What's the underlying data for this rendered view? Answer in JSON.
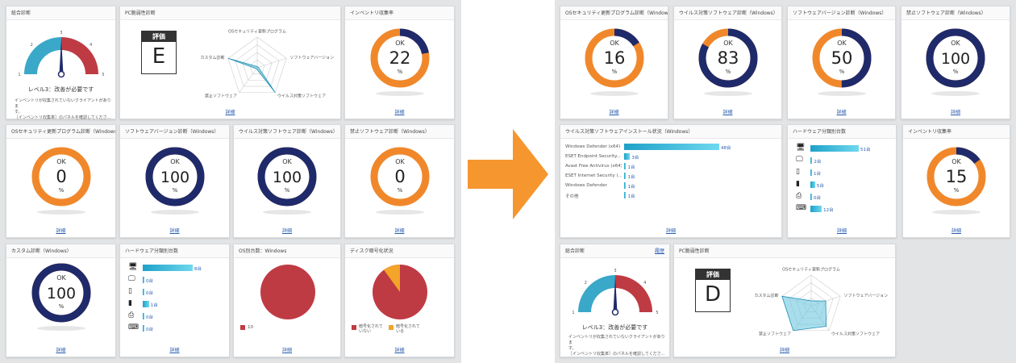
{
  "detail_label": "詳細",
  "left": {
    "overall": {
      "title": "総合診断",
      "gauge_ticks": [
        "1",
        "2",
        "3",
        "4",
        "5"
      ],
      "gauge_level": 3,
      "level_text": "レベル3：改善が必要です",
      "desc_line1": "インベントリが収集されていないクライアントがありま",
      "desc_line2": "す。",
      "desc_line3": "［インベントリ収集率］のパネルを確認してくださ..."
    },
    "pc_vuln": {
      "title": "PC脆弱性診断",
      "grade_label": "評価",
      "grade": "E",
      "radar_labels": [
        "OSセキュリティ更新プログラム",
        "ソフトウェアバージョン",
        "ウイルス対策ソフトウェア",
        "禁止ソフトウェア",
        "カスタム診断"
      ],
      "radar_values": [
        0,
        0,
        100,
        0,
        100
      ]
    },
    "inventory": {
      "title": "インベントリ収集率",
      "ok": "OK",
      "value": 22,
      "unit": "%"
    },
    "os_sec": {
      "title": "OSセキュリティ更新プログラム診断（Windows）",
      "ok": "OK",
      "value": 0,
      "unit": "%"
    },
    "sw_ver": {
      "title": "ソフトウェアバージョン診断（Windows）",
      "ok": "OK",
      "value": 100,
      "unit": "%"
    },
    "antivirus": {
      "title": "ウイルス対策ソフトウェア診断（Windows）",
      "ok": "OK",
      "value": 100,
      "unit": "%"
    },
    "forbidden": {
      "title": "禁止ソフトウェア診断（Windows）",
      "ok": "OK",
      "value": 0,
      "unit": "%"
    },
    "custom": {
      "title": "カスタム診断（Windows）",
      "ok": "OK",
      "value": 100,
      "unit": "%"
    },
    "hw_count": {
      "title": "ハードウェア分類別台数",
      "items": [
        {
          "icon": "desktop-icon",
          "value": 8,
          "label": "8台"
        },
        {
          "icon": "monitor-icon",
          "value": 0,
          "label": "0台"
        },
        {
          "icon": "tablet-icon",
          "value": 0,
          "label": "0台"
        },
        {
          "icon": "phone-icon",
          "value": 1,
          "label": "1台"
        },
        {
          "icon": "printer-icon",
          "value": 0,
          "label": "0台"
        },
        {
          "icon": "scanner-icon",
          "value": 0,
          "label": "0台"
        }
      ]
    },
    "os_count": {
      "title": "OS別台数：Windows",
      "legend": "10",
      "color": "#bf3b43"
    },
    "disk": {
      "title": "ディスク暗号化状況",
      "legend_not": "暗号化されていない",
      "legend_enc": "暗号化されている",
      "not_pct": 90,
      "enc_pct": 10
    }
  },
  "right": {
    "os_sec": {
      "title": "OSセキュリティ更新プログラム診断（Windows）",
      "ok": "OK",
      "value": 16,
      "unit": "%"
    },
    "antivirus": {
      "title": "ウイルス対策ソフトウェア診断（Windows）",
      "ok": "OK",
      "value": 83,
      "unit": "%"
    },
    "sw_ver": {
      "title": "ソフトウェアバージョン診断（Windows）",
      "ok": "OK",
      "value": 50,
      "unit": "%"
    },
    "forbidden": {
      "title": "禁止ソフトウェア診断（Windows）",
      "ok": "OK",
      "value": 100,
      "unit": "%"
    },
    "av_install": {
      "title": "ウイルス対策ソフトウェアインストール状況（Windows）",
      "items": [
        {
          "name": "Windows Defender (x64)",
          "value": 48,
          "label": "48台"
        },
        {
          "name": "ESET Endpoint Security...",
          "value": 3,
          "label": "3台"
        },
        {
          "name": "Avast Free Antivirus (x64)",
          "value": 1,
          "label": "1台"
        },
        {
          "name": "ESET Internet Security (...",
          "value": 1,
          "label": "1台"
        },
        {
          "name": "Windows Defender",
          "value": 1,
          "label": "1台"
        },
        {
          "name": "その他",
          "value": 1,
          "label": "1台"
        }
      ]
    },
    "hw_count": {
      "title": "ハードウェア分類別台数",
      "items": [
        {
          "icon": "desktop-icon",
          "value": 51,
          "label": "51台"
        },
        {
          "icon": "monitor-icon",
          "value": 2,
          "label": "2台"
        },
        {
          "icon": "tablet-icon",
          "value": 1,
          "label": "1台"
        },
        {
          "icon": "phone-icon",
          "value": 5,
          "label": "5台"
        },
        {
          "icon": "printer-icon",
          "value": 0,
          "label": "0台"
        },
        {
          "icon": "scanner-icon",
          "value": 12,
          "label": "12台"
        }
      ]
    },
    "inventory": {
      "title": "インベントリ収集率",
      "ok": "OK",
      "value": 15,
      "unit": "%"
    },
    "overall": {
      "title": "総合診断",
      "top_link": "履歴",
      "gauge_ticks": [
        "1",
        "2",
        "3",
        "4",
        "5"
      ],
      "gauge_level": 3,
      "level_text": "レベル3：改善が必要です",
      "desc_line1": "インベントリが収集されていないクライアントがありま",
      "desc_line2": "す。",
      "desc_line3": "［インベントリ収集率］のパネルを確認してくださ..."
    },
    "pc_vuln": {
      "title": "PC脆弱性診断",
      "grade_label": "評価",
      "grade": "D",
      "radar_labels": [
        "OSセキュリティ更新プログラム",
        "ソフトウェアバージョン",
        "ウイルス対策ソフトウェア",
        "禁止ソフトウェア",
        "カスタム診断"
      ],
      "radar_values": [
        16,
        50,
        83,
        100,
        100
      ]
    }
  },
  "colors": {
    "navy": "#1f2a6b",
    "orange": "#f0882b",
    "teal": "#3aa8c8",
    "red": "#bf3b43",
    "blue": "#2a5db0"
  }
}
